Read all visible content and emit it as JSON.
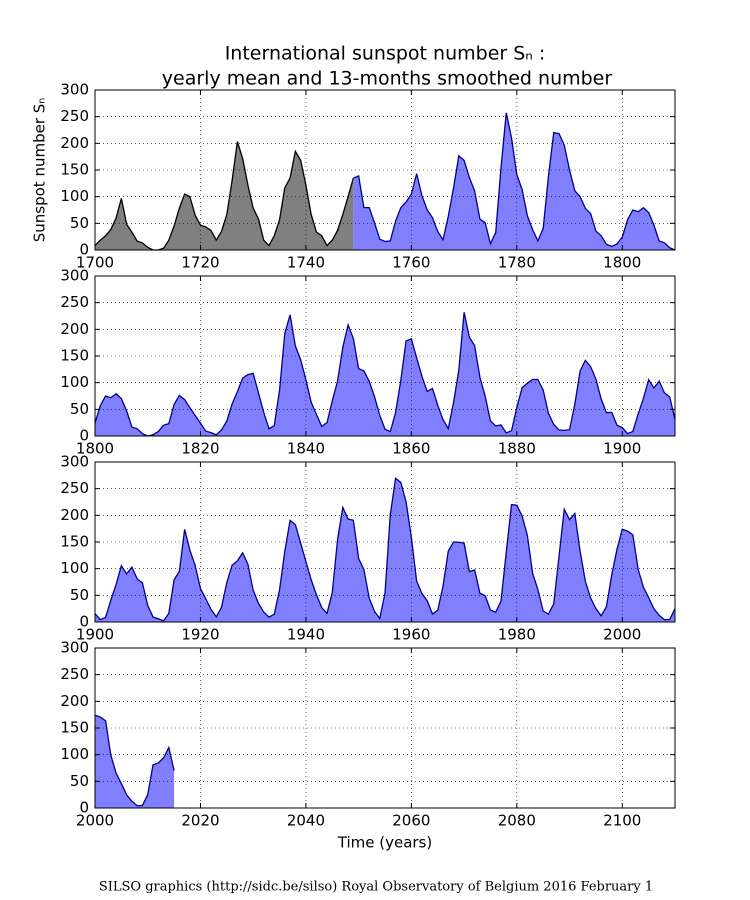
{
  "chart_data": [
    {
      "type": "area",
      "title": "International sunspot number Sₙ :",
      "subtitle": "yearly mean and 13-months smoothed number",
      "ylabel": "Sunspot number Sₙ",
      "xlim": [
        1700,
        1810
      ],
      "xticks": [
        1700,
        1720,
        1740,
        1760,
        1780,
        1800
      ],
      "ylim": [
        0,
        300
      ],
      "yticks": [
        0,
        50,
        100,
        150,
        200,
        250,
        300
      ],
      "grid": true,
      "series": [
        {
          "color": "#808080",
          "line_color": "#000000",
          "x": [
            1700,
            1701,
            1702,
            1703,
            1704,
            1705,
            1706,
            1707,
            1708,
            1709,
            1710,
            1711,
            1712,
            1713,
            1714,
            1715,
            1716,
            1717,
            1718,
            1719,
            1720,
            1721,
            1722,
            1723,
            1724,
            1725,
            1726,
            1727,
            1728,
            1729,
            1730,
            1731,
            1732,
            1733,
            1734,
            1735,
            1736,
            1737,
            1738,
            1739,
            1740,
            1741,
            1742,
            1743,
            1744,
            1745,
            1746,
            1747,
            1748,
            1749
          ],
          "values": [
            8.3,
            18.3,
            26.7,
            38.3,
            60,
            96.7,
            48.3,
            33.3,
            16.7,
            13.3,
            5,
            0,
            0,
            3.3,
            18.3,
            45,
            78.3,
            105,
            100,
            65,
            46.7,
            43.3,
            36.7,
            18.3,
            35,
            66.7,
            130,
            203.3,
            171.7,
            121.7,
            78.3,
            58.3,
            18.3,
            8.3,
            26.7,
            56.7,
            116.7,
            135,
            185,
            168.3,
            121.7,
            66.7,
            33.3,
            26.7,
            8.3,
            18.3,
            36.7,
            66.7,
            100,
            134.8
          ]
        },
        {
          "color": "#8080ff",
          "line_color": "#00008b",
          "x": [
            1749,
            1750,
            1751,
            1752,
            1753,
            1754,
            1755,
            1756,
            1757,
            1758,
            1759,
            1760,
            1761,
            1762,
            1763,
            1764,
            1765,
            1766,
            1767,
            1768,
            1769,
            1770,
            1771,
            1772,
            1773,
            1774,
            1775,
            1776,
            1777,
            1778,
            1779,
            1780,
            1781,
            1782,
            1783,
            1784,
            1785,
            1786,
            1787,
            1788,
            1789,
            1790,
            1791,
            1792,
            1793,
            1794,
            1795,
            1796,
            1797,
            1798,
            1799,
            1800,
            1801,
            1802,
            1803,
            1804,
            1805,
            1806,
            1807,
            1808,
            1809,
            1810
          ],
          "values": [
            134.8,
            139,
            79.5,
            79.7,
            51.2,
            20.3,
            16,
            17,
            54,
            79.3,
            90,
            104.8,
            143.2,
            102,
            75.2,
            60.7,
            34.8,
            19,
            63,
            116.3,
            176.8,
            168,
            136,
            110.8,
            58,
            51,
            11.7,
            33,
            154.2,
            257.3,
            209.8,
            141.3,
            113.5,
            64.2,
            38,
            17,
            40.2,
            138.2,
            220,
            218.2,
            196.8,
            149.8,
            111,
            100,
            78.2,
            68.3,
            35.5,
            26.7,
            10.7,
            6.8,
            11.3,
            24.2,
            56.7,
            75,
            71.8,
            79.2,
            70.3,
            46.8,
            16.8,
            13.5,
            4.2,
            0
          ]
        }
      ]
    },
    {
      "type": "area",
      "xlim": [
        1800,
        1910
      ],
      "xticks": [
        1800,
        1820,
        1840,
        1860,
        1880,
        1900
      ],
      "ylim": [
        0,
        300
      ],
      "yticks": [
        0,
        50,
        100,
        150,
        200,
        250,
        300
      ],
      "grid": true,
      "series": [
        {
          "color": "#8080ff",
          "line_color": "#00008b",
          "x": [
            1800,
            1801,
            1802,
            1803,
            1804,
            1805,
            1806,
            1807,
            1808,
            1809,
            1810,
            1811,
            1812,
            1813,
            1814,
            1815,
            1816,
            1817,
            1818,
            1819,
            1820,
            1821,
            1822,
            1823,
            1824,
            1825,
            1826,
            1827,
            1828,
            1829,
            1830,
            1831,
            1832,
            1833,
            1834,
            1835,
            1836,
            1837,
            1838,
            1839,
            1840,
            1841,
            1842,
            1843,
            1844,
            1845,
            1846,
            1847,
            1848,
            1849,
            1850,
            1851,
            1852,
            1853,
            1854,
            1855,
            1856,
            1857,
            1858,
            1859,
            1860,
            1861,
            1862,
            1863,
            1864,
            1865,
            1866,
            1867,
            1868,
            1869,
            1870,
            1871,
            1872,
            1873,
            1874,
            1875,
            1876,
            1877,
            1878,
            1879,
            1880,
            1881,
            1882,
            1883,
            1884,
            1885,
            1886,
            1887,
            1888,
            1889,
            1890,
            1891,
            1892,
            1893,
            1894,
            1895,
            1896,
            1897,
            1898,
            1899,
            1900,
            1901,
            1902,
            1903,
            1904,
            1905,
            1906,
            1907,
            1908,
            1909,
            1910
          ],
          "values": [
            24.2,
            56.7,
            75,
            71.8,
            79.2,
            70.3,
            46.8,
            16.8,
            13.5,
            4.2,
            0,
            2.3,
            8.3,
            20.3,
            23.2,
            59,
            76.3,
            68.3,
            52.9,
            38.5,
            24.2,
            9.2,
            6.3,
            2.2,
            11.4,
            28.2,
            59.9,
            83,
            108.5,
            115.2,
            117.4,
            80.8,
            44.3,
            13.4,
            19.5,
            85.8,
            192.7,
            227.3,
            168.7,
            143,
            105.5,
            63.3,
            40.3,
            18.1,
            25.1,
            65.8,
            102.7,
            166.3,
            208.3,
            182.5,
            126.3,
            122,
            102.7,
            74.1,
            39,
            12.7,
            8.2,
            43.4,
            104.4,
            178.3,
            182.2,
            146.6,
            112.1,
            83.5,
            89.2,
            57.8,
            30.7,
            13.9,
            62.8,
            123.6,
            232,
            185.3,
            169.2,
            110.1,
            74.5,
            28.3,
            18.9,
            20.7,
            5.7,
            10,
            53.7,
            90.5,
            99,
            106.1,
            105.8,
            86.3,
            42.4,
            21.8,
            11.2,
            10.4,
            11.8,
            59.5,
            121.7,
            142,
            130,
            106.6,
            69.4,
            43.8,
            44.4,
            20.2,
            15.7,
            4.6,
            8.5,
            40.8,
            70.1,
            105.5,
            90.1,
            102.8,
            80.9,
            73.2,
            30.9
          ]
        }
      ]
    },
    {
      "type": "area",
      "xlim": [
        1900,
        2010
      ],
      "xticks": [
        1900,
        1920,
        1940,
        1960,
        1980,
        2000
      ],
      "ylim": [
        0,
        300
      ],
      "yticks": [
        0,
        50,
        100,
        150,
        200,
        250,
        300
      ],
      "grid": true,
      "series": [
        {
          "color": "#8080ff",
          "line_color": "#00008b",
          "x": [
            1900,
            1901,
            1902,
            1903,
            1904,
            1905,
            1906,
            1907,
            1908,
            1909,
            1910,
            1911,
            1912,
            1913,
            1914,
            1915,
            1916,
            1917,
            1918,
            1919,
            1920,
            1921,
            1922,
            1923,
            1924,
            1925,
            1926,
            1927,
            1928,
            1929,
            1930,
            1931,
            1932,
            1933,
            1934,
            1935,
            1936,
            1937,
            1938,
            1939,
            1940,
            1941,
            1942,
            1943,
            1944,
            1945,
            1946,
            1947,
            1948,
            1949,
            1950,
            1951,
            1952,
            1953,
            1954,
            1955,
            1956,
            1957,
            1958,
            1959,
            1960,
            1961,
            1962,
            1963,
            1964,
            1965,
            1966,
            1967,
            1968,
            1969,
            1970,
            1971,
            1972,
            1973,
            1974,
            1975,
            1976,
            1977,
            1978,
            1979,
            1980,
            1981,
            1982,
            1983,
            1984,
            1985,
            1986,
            1987,
            1988,
            1989,
            1990,
            1991,
            1992,
            1993,
            1994,
            1995,
            1996,
            1997,
            1998,
            1999,
            2000,
            2001,
            2002,
            2003,
            2004,
            2005,
            2006,
            2007,
            2008,
            2009,
            2010
          ],
          "values": [
            15.7,
            4.6,
            8.5,
            40.8,
            70.1,
            105.5,
            90.1,
            102.8,
            80.9,
            73.2,
            30.9,
            9.5,
            6,
            2.4,
            16.1,
            79,
            95,
            173.6,
            134.6,
            105.7,
            62.7,
            43.5,
            23.7,
            9.7,
            27.9,
            74,
            106.5,
            114.7,
            129.7,
            108.2,
            59.4,
            35.1,
            18.6,
            9.2,
            14.6,
            60.2,
            132.8,
            190.6,
            182.6,
            148,
            113,
            79.2,
            50.8,
            27.1,
            16.1,
            55.3,
            154.3,
            214.7,
            193,
            190.7,
            118.9,
            98.3,
            45,
            20.1,
            6.6,
            54.2,
            200.7,
            269.3,
            261.7,
            225.1,
            159,
            76.4,
            53.4,
            39.9,
            15,
            22,
            66.8,
            132.9,
            150,
            149.4,
            148,
            94.4,
            97.6,
            54.1,
            49.2,
            22.5,
            18.4,
            39.3,
            131,
            220.1,
            218.9,
            198.9,
            162.4,
            91,
            60.5,
            20.6,
            14.8,
            33.9,
            123,
            211.1,
            191.8,
            203.3,
            133,
            76.1,
            44.9,
            25.1,
            11.6,
            28.9,
            88.3,
            136.3,
            173.9,
            170.4,
            163.6,
            99.3,
            65.3,
            45.8,
            24.7,
            12.6,
            4.2,
            4.8,
            24.9
          ]
        }
      ]
    },
    {
      "type": "area",
      "xlabel": "Time (years)",
      "xlim": [
        2000,
        2110
      ],
      "xticks": [
        2000,
        2020,
        2040,
        2060,
        2080,
        2100
      ],
      "ylim": [
        0,
        300
      ],
      "yticks": [
        0,
        50,
        100,
        150,
        200,
        250,
        300
      ],
      "grid": true,
      "series": [
        {
          "color": "#8080ff",
          "line_color": "#00008b",
          "x": [
            2000,
            2001,
            2002,
            2003,
            2004,
            2005,
            2006,
            2007,
            2008,
            2009,
            2010,
            2011,
            2012,
            2013,
            2014,
            2015
          ],
          "values": [
            173.9,
            170.4,
            163.6,
            99.3,
            65.3,
            45.8,
            24.7,
            12.6,
            4.2,
            4.8,
            24.9,
            80.8,
            84.5,
            94,
            113.3,
            69.8
          ]
        }
      ]
    }
  ],
  "footer": "SILSO graphics (http://sidc.be/silso)  Royal Observatory of Belgium  2016 February 1"
}
